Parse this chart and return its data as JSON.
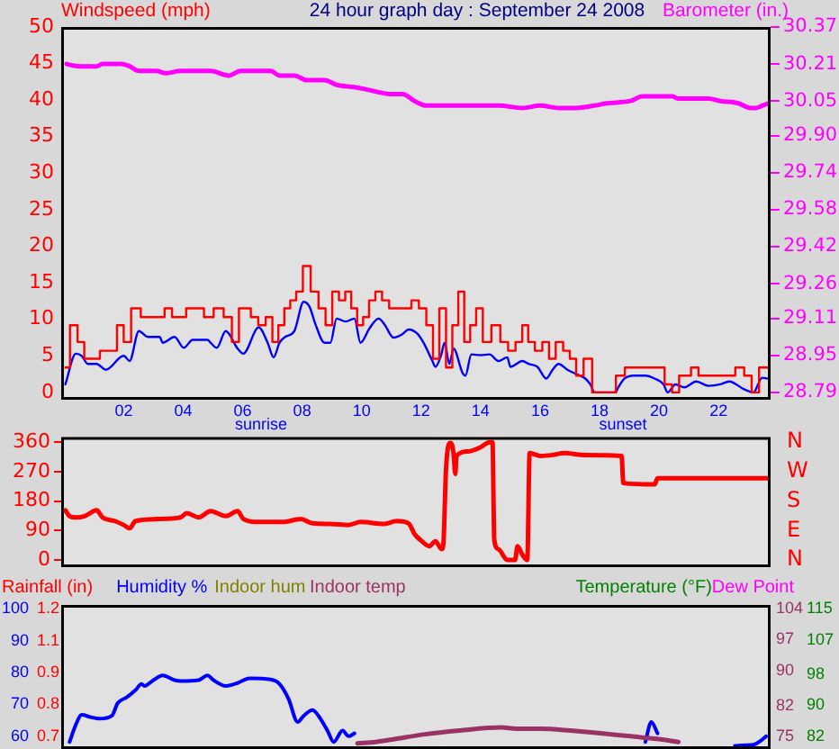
{
  "chart_data": [
    {
      "type": "line",
      "title": "24 hour graph day : September 24 2008",
      "ylabel": "Windspeed (mph)",
      "y2label": "Barometer (in.)",
      "xlim": [
        -0.1,
        23.75
      ],
      "xticks": [
        {
          "value": 2,
          "label": "02"
        },
        {
          "value": 4,
          "label": "04"
        },
        {
          "value": 6,
          "label": "06"
        },
        {
          "value": 8,
          "label": "08"
        },
        10,
        12,
        14,
        16,
        18,
        20,
        22
      ],
      "ylim": [
        -1,
        50
      ],
      "yticks": [
        0,
        5,
        10,
        15,
        20,
        25,
        30,
        35,
        40,
        45,
        50
      ],
      "y2lim": [
        28.758,
        30.37
      ],
      "y2ticks": [
        28.79,
        28.95,
        29.11,
        29.26,
        29.42,
        29.58,
        29.74,
        {
          "value": 29.9,
          "label": "29.90"
        },
        30.05,
        30.21,
        30.37
      ],
      "annotations": [
        "sunrise",
        "sunset"
      ],
      "series": [
        {
          "type": "step",
          "color": "#ff0000",
          "x": [
            0.04,
            0.35,
            0.55,
            0.8,
            1.05,
            1.35,
            1.65,
            1.9,
            2.1,
            2.4,
            2.75,
            3.25,
            3.5,
            3.75,
            3.95,
            4.25,
            4.55,
            4.85,
            5.2,
            5.525,
            5.75,
            6.0,
            6.15,
            6.4,
            6.65,
            6.9,
            7.1,
            7.3,
            7.5,
            7.7,
            7.9,
            8.15,
            8.425,
            8.675,
            8.9,
            9.125,
            9.35,
            9.55,
            9.75,
            9.95,
            10.15,
            10.35,
            10.575,
            10.8,
            11.05,
            11.55,
            11.8,
            12.05,
            12.3,
            12.5,
            12.725,
            12.95,
            13.15,
            13.35,
            13.55,
            13.75,
            13.95,
            14.2,
            14.525,
            14.8,
            15.05,
            15.3,
            15.5,
            15.7,
            15.95,
            16.2,
            16.4,
            16.65,
            16.9,
            17.1,
            17.325,
            17.6,
            17.9,
            18.4,
            18.7,
            19.0,
            20.05,
            20.325,
            20.55,
            20.8,
            20.95,
            21.2,
            21.45,
            22.4,
            22.725,
            23.0,
            23.225,
            23.5,
            23.7
          ],
          "values": [
            3.4,
            9.2,
            6.9,
            4.6,
            4.6,
            5.7,
            5.7,
            9.2,
            6.9,
            11.5,
            10.3,
            10.3,
            11.5,
            10.3,
            10.3,
            11.5,
            11.5,
            10.3,
            11.5,
            10.3,
            6.9,
            11.5,
            11.5,
            10.3,
            9.2,
            10.3,
            6.9,
            9.2,
            11.5,
            12.6,
            13.8,
            17.3,
            13.8,
            11.5,
            9.2,
            13.8,
            12.6,
            13.8,
            11.5,
            9.2,
            10.3,
            12.6,
            13.8,
            12.6,
            11.5,
            11.5,
            12.6,
            11.5,
            9.2,
            4.6,
            11.5,
            3.4,
            9.2,
            13.8,
            6.9,
            9.2,
            11.5,
            6.9,
            9.2,
            6.9,
            5.7,
            6.9,
            9.2,
            6.9,
            5.7,
            6.9,
            4.6,
            6.9,
            5.7,
            4.6,
            2.3,
            4.6,
            0,
            0,
            2.3,
            3.4,
            3.4,
            1.1,
            0,
            2.3,
            2.3,
            3.4,
            2.3,
            2.3,
            3.4,
            2.3,
            0,
            3.4,
            3.4
          ]
        },
        {
          "color": "#0000ff",
          "x": [
            0.04,
            0.39,
            0.59,
            0.79,
            1.09,
            1.4,
            2.0,
            2.2,
            2.51,
            2.81,
            3.21,
            3.31,
            3.71,
            4.02,
            4.32,
            4.82,
            4.92,
            5.13,
            5.43,
            5.83,
            6.02,
            6.54,
            6.84,
            7.04,
            7.24,
            7.43,
            7.74,
            8.05,
            8.25,
            8.45,
            8.75,
            8.95,
            9.16,
            9.46,
            9.76,
            9.96,
            10.27,
            10.57,
            10.77,
            11.07,
            11.38,
            11.58,
            11.88,
            12.08,
            12.38,
            12.48,
            12.68,
            12.79,
            12.95,
            13.09,
            13.39,
            13.49,
            13.69,
            13.99,
            14.3,
            14.6,
            14.9,
            15.0,
            15.41,
            15.61,
            15.91,
            16.21,
            16.42,
            16.62,
            16.92,
            17.22,
            17.52,
            17.69,
            17.83,
            18.53,
            18.63,
            18.84,
            19.14,
            19.54,
            19.85,
            20.15,
            20.29,
            20.55,
            20.85,
            21.25,
            21.66,
            22.06,
            22.36,
            22.87,
            23.17,
            23.47,
            23.63
          ],
          "values": [
            1.1,
            5.3,
            5.0,
            3.9,
            3.9,
            3.1,
            5.0,
            4.3,
            8.4,
            7.6,
            7.6,
            6.8,
            7.6,
            6.1,
            7.2,
            7.2,
            6.8,
            6.1,
            8.4,
            6.0,
            5.3,
            8.9,
            6.8,
            4.8,
            6.8,
            7.6,
            8.4,
            12.4,
            11.7,
            9.3,
            6.8,
            6.8,
            10.1,
            9.7,
            10.1,
            6.8,
            8.8,
            10.1,
            9.3,
            7.5,
            8.0,
            8.6,
            8.0,
            6.8,
            4.3,
            3.5,
            5.2,
            6.8,
            3.9,
            6.0,
            2.7,
            2.3,
            5.2,
            5.1,
            5.2,
            4.3,
            4.8,
            3.5,
            4.3,
            3.9,
            3.5,
            1.9,
            3.1,
            3.9,
            3.1,
            2.5,
            1.9,
            1.1,
            0,
            0,
            0.7,
            1.9,
            2.3,
            2.3,
            1.9,
            1.1,
            0,
            1.1,
            0.7,
            1.5,
            0.9,
            1.1,
            1.5,
            0.4,
            0,
            2.0,
            1.9
          ]
        },
        {
          "color": "#ff00ff",
          "axis": "y2",
          "x": [
            0.08,
            0.49,
            1.09,
            1.29,
            1.9,
            2.2,
            2.5,
            3.1,
            3.41,
            3.91,
            4.72,
            4.92,
            5.53,
            5.93,
            6.94,
            7.24,
            7.75,
            8.15,
            8.75,
            9.16,
            9.76,
            10.16,
            10.97,
            11.38,
            11.78,
            12.18,
            12.79,
            13.59,
            14.0,
            14.6,
            15.41,
            16.01,
            16.62,
            17.22,
            17.83,
            18.23,
            19.04,
            19.44,
            20.45,
            20.65,
            21.66,
            22.06,
            22.67,
            23.07,
            23.27,
            23.47,
            23.68
          ],
          "values": [
            30.21,
            30.2,
            30.2,
            30.21,
            30.21,
            30.2,
            30.18,
            30.18,
            30.17,
            30.18,
            30.18,
            30.18,
            30.16,
            30.18,
            30.18,
            30.16,
            30.16,
            30.14,
            30.14,
            30.12,
            30.11,
            30.1,
            30.08,
            30.08,
            30.05,
            30.03,
            30.03,
            30.03,
            30.03,
            30.03,
            30.02,
            30.03,
            30.02,
            30.02,
            30.03,
            30.04,
            30.05,
            30.07,
            30.07,
            30.06,
            30.06,
            30.05,
            30.04,
            30.02,
            30.02,
            30.03,
            30.04
          ]
        }
      ]
    },
    {
      "type": "line",
      "tick_labels": "y",
      "xlim": [
        -0.1,
        23.75
      ],
      "ylim": [
        -22,
        376
      ],
      "yticks": [
        0,
        90,
        180,
        270,
        360
      ],
      "annotations": [
        "N",
        "W",
        "S",
        "E",
        "N"
      ],
      "series": [
        {
          "color": "#ff0000",
          "x": [
            0.04,
            0.18,
            0.39,
            0.69,
            1.09,
            1.29,
            1.7,
            2.0,
            2.2,
            2.4,
            3.11,
            3.91,
            4.12,
            4.52,
            4.92,
            5.43,
            5.83,
            6.03,
            6.53,
            7.34,
            7.95,
            8.35,
            8.96,
            9.56,
            9.96,
            10.77,
            11.17,
            11.58,
            11.78,
            11.98,
            12.28,
            12.48,
            12.69,
            12.75,
            12.83,
            12.89,
            12.99,
            13.09,
            13.15,
            13.19,
            13.59,
            14.0,
            14.3,
            14.4,
            14.46,
            14.6,
            14.9,
            15.16,
            15.24,
            15.41,
            15.57,
            15.65,
            16.01,
            16.42,
            16.82,
            17.43,
            18.74,
            18.8,
            19.85,
            19.95,
            23.64
          ],
          "values": [
            152,
            134,
            130,
            134,
            152,
            130,
            119,
            107,
            97,
            119,
            125,
            130,
            143,
            130,
            149,
            134,
            149,
            125,
            116,
            116,
            125,
            112,
            110,
            107,
            116,
            110,
            119,
            112,
            79,
            61,
            42,
            57,
            33,
            51,
            263,
            336,
            358,
            327,
            263,
            318,
            332,
            345,
            360,
            360,
            61,
            33,
            0,
            0,
            42,
            15,
            0,
            327,
            318,
            321,
            327,
            321,
            318,
            235,
            231,
            250,
            250
          ]
        }
      ]
    },
    {
      "type": "line",
      "tick_labels": "y",
      "legend": "top",
      "xlim": [
        -0.1,
        23.75
      ],
      "ylim": [
        56,
        101.2
      ],
      "yticks": [
        60,
        70,
        80,
        90,
        100
      ],
      "y2lim": [
        0.65,
        1.215
      ],
      "y2ticks": [
        0.7,
        {
          "value": 0.825,
          "label": "0.8"
        },
        {
          "value": 0.95,
          "label": "0.9"
        },
        {
          "value": 1.075,
          "label": "1.1"
        },
        1.2
      ],
      "series": [
        {
          "name": "Rainfall (in)",
          "color": "#ff0000",
          "axis": "y2"
        },
        {
          "name": "Humidity %",
          "color": "#0000ff",
          "x": [
            0.18,
            0.39,
            0.59,
            0.89,
            1.19,
            1.6,
            1.8,
            2.1,
            2.4,
            2.6,
            2.7,
            3.0,
            3.31,
            3.71,
            3.91,
            4.52,
            4.82,
            5.02,
            5.43,
            5.83,
            6.23,
            6.94,
            7.24,
            7.54,
            7.85,
            8.05,
            8.35,
            8.55,
            8.85,
            9.06,
            9.36,
            9.56,
            9.76,
            9.86,
            19.54,
            19.74,
            19.95,
            20.15,
            22.55,
            22.9,
            23.2,
            23.42,
            23.6
          ],
          "values": [
            58.2,
            63.6,
            66.7,
            66.0,
            65.5,
            66.4,
            70.4,
            72.2,
            74.5,
            76.4,
            75.8,
            77.6,
            79.1,
            77.6,
            77.3,
            77.6,
            79.1,
            77.6,
            75.8,
            76.7,
            78.2,
            77.8,
            76.4,
            71.8,
            64.5,
            66.4,
            68.2,
            66.4,
            61.8,
            58.2,
            61.8,
            60.0,
            60.9,
            null,
            58.2,
            64.5,
            60.9,
            null,
            57.0,
            57.2,
            57.4,
            58.6,
            60.0
          ]
        },
        {
          "name": "Indoor hum",
          "color": "#808000"
        }
      ]
    },
    {
      "type": "line",
      "tick_labels": "y",
      "legend": "top",
      "xlim": [
        -0.1,
        23.75
      ],
      "ylim": [
        72.1,
        104.87
      ],
      "yticks": [
        75,
        82,
        90,
        97,
        104
      ],
      "y2lim": [
        78.7,
        115.99
      ],
      "y2ticks": [
        82,
        90,
        98,
        107,
        115
      ],
      "series": [
        {
          "name": "Indoor temp",
          "color": "#993366",
          "x": [
            9.86,
            10.47,
            11.07,
            12.08,
            13.29,
            14.7,
            15.2,
            16.01,
            17.02,
            18.03,
            19.04,
            20.05,
            20.65
          ],
          "values": [
            73.4,
            73.7,
            74.3,
            75.4,
            76.3,
            77.0,
            76.7,
            76.7,
            76.3,
            75.7,
            75.0,
            74.3,
            73.7
          ]
        },
        {
          "name": "Temperature (°F)",
          "color": "#008000",
          "axis": "y2"
        },
        {
          "name": "Dew Point",
          "color": "#ff00ff",
          "axis": "y2"
        }
      ]
    }
  ]
}
